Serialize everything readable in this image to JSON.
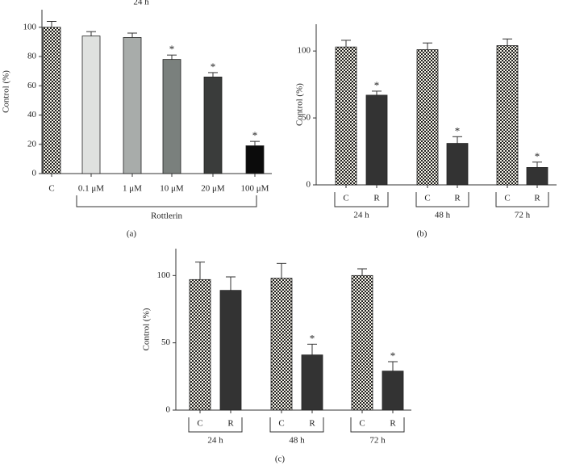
{
  "chart_data": [
    {
      "type": "bar",
      "label": "(a)",
      "title": "24 h",
      "y_label": "Control (%)",
      "categories": [
        "C",
        "0.1 μM",
        "1 μM",
        "10 μM",
        "20 μM",
        "100 μM"
      ],
      "values": [
        100,
        94,
        93,
        78,
        66,
        19
      ],
      "errors": [
        4,
        3,
        3,
        3,
        3,
        3
      ],
      "markers": [
        null,
        null,
        null,
        "*",
        "*",
        "*"
      ],
      "colors": [
        "checker",
        "#dfe1df",
        "#a8acaa",
        "#7a807d",
        "#3a3c3b",
        "#0b0b0b"
      ],
      "bracket": "Rottlerin",
      "ylim": [
        0,
        112
      ],
      "yticks": [
        0,
        20,
        40,
        60,
        80,
        100
      ]
    },
    {
      "type": "bar",
      "label": "(b)",
      "y_label": "Control (%)",
      "categories": [
        "C",
        "R",
        "C",
        "R",
        "C",
        "R"
      ],
      "groups": [
        "24 h",
        "48 h",
        "72 h"
      ],
      "values": [
        103,
        67,
        101,
        31,
        104,
        13
      ],
      "errors": [
        5,
        3,
        5,
        5,
        5,
        4
      ],
      "markers": [
        null,
        "*",
        null,
        "*",
        null,
        "*"
      ],
      "colors": [
        "checker",
        "#333333",
        "checker",
        "#333333",
        "checker",
        "#333333"
      ],
      "ylim": [
        0,
        120
      ],
      "yticks": [
        0,
        50,
        100
      ]
    },
    {
      "type": "bar",
      "label": "(c)",
      "y_label": "Control (%)",
      "categories": [
        "C",
        "R",
        "C",
        "R",
        "C",
        "R"
      ],
      "groups": [
        "24 h",
        "48 h",
        "72 h"
      ],
      "values": [
        97,
        89,
        98,
        41,
        100,
        29
      ],
      "errors": [
        13,
        10,
        11,
        8,
        5,
        7
      ],
      "markers": [
        null,
        null,
        null,
        "*",
        null,
        "*"
      ],
      "colors": [
        "checker",
        "#333333",
        "checker",
        "#333333",
        "checker",
        "#333333"
      ],
      "ylim": [
        0,
        120
      ],
      "yticks": [
        0,
        50,
        100
      ]
    }
  ]
}
